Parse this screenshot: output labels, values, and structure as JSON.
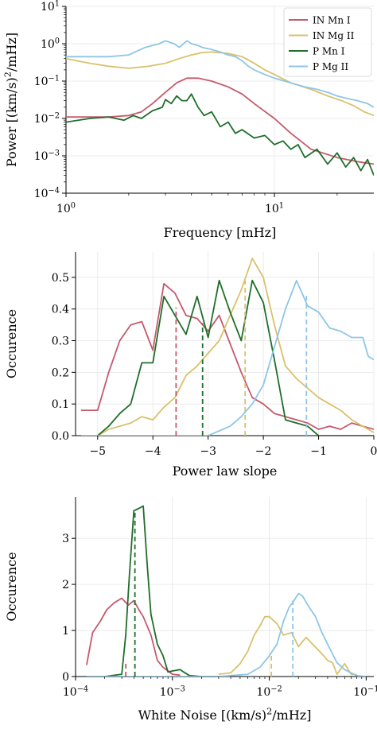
{
  "colors": {
    "IN Mn I": "#c55a6c",
    "IN Mg II": "#d9c16b",
    "P Mn I": "#1f6e2b",
    "P Mg II": "#8ec6e6"
  },
  "chart_data": [
    {
      "type": "line",
      "xlabel": "Frequency [mHz]",
      "ylabel": "Power [(km/s)^2/mHz]",
      "xscale": "log",
      "yscale": "log",
      "xlim": [
        1,
        30
      ],
      "ylim": [
        0.0001,
        10
      ],
      "grid": true,
      "legend_position": "top-right",
      "xticks": [
        {
          "v": 1,
          "label": "10^0"
        },
        {
          "v": 10,
          "label": "10^1"
        }
      ],
      "yticks": [
        {
          "v": 0.0001,
          "label": "10^-4"
        },
        {
          "v": 0.001,
          "label": "10^-3"
        },
        {
          "v": 0.01,
          "label": "10^-2"
        },
        {
          "v": 0.1,
          "label": "10^-1"
        },
        {
          "v": 1,
          "label": "10^0"
        },
        {
          "v": 10,
          "label": "10^1"
        }
      ],
      "series": [
        {
          "name": "IN Mn I",
          "x": [
            1,
            1.3,
            1.6,
            2,
            2.3,
            2.6,
            3,
            3.4,
            3.8,
            4.3,
            5,
            6,
            7,
            8,
            10,
            12,
            15,
            20,
            25,
            30
          ],
          "y": [
            0.011,
            0.011,
            0.011,
            0.012,
            0.015,
            0.025,
            0.05,
            0.09,
            0.12,
            0.12,
            0.1,
            0.07,
            0.045,
            0.025,
            0.01,
            0.004,
            0.0015,
            0.0009,
            0.0007,
            0.0006
          ]
        },
        {
          "name": "IN Mg II",
          "x": [
            1,
            1.3,
            1.6,
            2,
            2.5,
            3,
            3.5,
            4,
            4.5,
            5,
            6,
            7,
            8,
            9,
            10,
            12,
            15,
            18,
            21,
            24,
            27,
            30
          ],
          "y": [
            0.4,
            0.3,
            0.25,
            0.22,
            0.25,
            0.3,
            0.4,
            0.5,
            0.58,
            0.6,
            0.55,
            0.45,
            0.3,
            0.2,
            0.15,
            0.09,
            0.06,
            0.04,
            0.03,
            0.022,
            0.015,
            0.012
          ]
        },
        {
          "name": "P Mn I",
          "x": [
            1,
            1.3,
            1.6,
            1.9,
            2.1,
            2.3,
            2.6,
            2.9,
            3,
            3.2,
            3.4,
            3.6,
            3.8,
            4,
            4.3,
            4.6,
            5,
            5.5,
            6,
            6.5,
            7,
            8,
            9,
            10,
            11,
            12,
            13,
            14,
            16,
            18,
            20,
            22,
            24,
            26,
            28,
            30
          ],
          "y": [
            0.008,
            0.01,
            0.011,
            0.009,
            0.012,
            0.01,
            0.016,
            0.02,
            0.032,
            0.025,
            0.04,
            0.03,
            0.03,
            0.045,
            0.02,
            0.012,
            0.015,
            0.006,
            0.008,
            0.004,
            0.005,
            0.003,
            0.0035,
            0.002,
            0.0025,
            0.0015,
            0.002,
            0.0009,
            0.0015,
            0.0006,
            0.0012,
            0.0005,
            0.0009,
            0.0004,
            0.0008,
            0.0003
          ]
        },
        {
          "name": "P Mg II",
          "x": [
            1,
            1.3,
            1.6,
            2,
            2.4,
            2.8,
            3,
            3.3,
            3.5,
            3.8,
            4,
            4.3,
            4.5,
            5,
            5.5,
            6,
            6.5,
            7,
            7.5,
            8,
            9,
            10,
            12,
            14,
            16,
            18,
            20,
            22,
            25,
            28,
            30
          ],
          "y": [
            0.45,
            0.45,
            0.45,
            0.5,
            0.8,
            1.0,
            1.2,
            1.0,
            0.8,
            1.2,
            1.0,
            0.9,
            0.8,
            0.7,
            0.6,
            0.5,
            0.45,
            0.35,
            0.25,
            0.2,
            0.15,
            0.12,
            0.09,
            0.07,
            0.06,
            0.05,
            0.04,
            0.035,
            0.03,
            0.025,
            0.02
          ]
        }
      ]
    },
    {
      "type": "line",
      "xlabel": "Power law slope",
      "ylabel": "Occurence",
      "xlim": [
        -5.4,
        0
      ],
      "ylim": [
        0,
        0.58
      ],
      "grid": true,
      "xticks": [
        {
          "v": -5,
          "label": "−5"
        },
        {
          "v": -4,
          "label": "−4"
        },
        {
          "v": -3,
          "label": "−3"
        },
        {
          "v": -2,
          "label": "−2"
        },
        {
          "v": -1,
          "label": "−1"
        },
        {
          "v": 0,
          "label": "0"
        }
      ],
      "yticks": [
        {
          "v": 0,
          "label": "0.0"
        },
        {
          "v": 0.1,
          "label": "0.1"
        },
        {
          "v": 0.2,
          "label": "0.2"
        },
        {
          "v": 0.3,
          "label": "0.3"
        },
        {
          "v": 0.4,
          "label": "0.4"
        },
        {
          "v": 0.5,
          "label": "0.5"
        }
      ],
      "series": [
        {
          "name": "IN Mn I",
          "x": [
            -5.3,
            -5.0,
            -4.8,
            -4.6,
            -4.4,
            -4.2,
            -4.0,
            -3.8,
            -3.6,
            -3.4,
            -3.2,
            -3.0,
            -2.8,
            -2.6,
            -2.4,
            -2.2,
            -2.0,
            -1.8,
            -1.6,
            -1.4,
            -1.2,
            -1.0,
            -0.8,
            -0.6,
            -0.4,
            -0.2,
            0.0
          ],
          "y": [
            0.08,
            0.08,
            0.2,
            0.3,
            0.35,
            0.36,
            0.27,
            0.48,
            0.45,
            0.38,
            0.37,
            0.33,
            0.38,
            0.29,
            0.2,
            0.12,
            0.1,
            0.07,
            0.06,
            0.05,
            0.04,
            0.02,
            0.03,
            0.02,
            0.04,
            0.03,
            0.02
          ]
        },
        {
          "name": "IN Mg II",
          "x": [
            -5.0,
            -4.8,
            -4.6,
            -4.4,
            -4.2,
            -4.0,
            -3.8,
            -3.6,
            -3.4,
            -3.2,
            -3.0,
            -2.8,
            -2.6,
            -2.4,
            -2.2,
            -2.0,
            -1.8,
            -1.6,
            -1.4,
            -1.2,
            -1.0,
            -0.8,
            -0.6,
            -0.4,
            -0.2,
            0.0
          ],
          "y": [
            0.0,
            0.02,
            0.03,
            0.04,
            0.06,
            0.05,
            0.09,
            0.12,
            0.19,
            0.22,
            0.26,
            0.3,
            0.38,
            0.46,
            0.56,
            0.5,
            0.35,
            0.22,
            0.18,
            0.15,
            0.12,
            0.1,
            0.08,
            0.05,
            0.03,
            0.01
          ]
        },
        {
          "name": "P Mn I",
          "x": [
            -5.0,
            -4.8,
            -4.6,
            -4.4,
            -4.2,
            -4.0,
            -3.8,
            -3.6,
            -3.4,
            -3.2,
            -3.0,
            -2.8,
            -2.6,
            -2.4,
            -2.2,
            -2.0,
            -1.8,
            -1.6,
            -1.4,
            -1.2,
            -1.0,
            -0.8,
            -0.6,
            -0.4,
            -0.2,
            0.0
          ],
          "y": [
            0.0,
            0.03,
            0.07,
            0.1,
            0.23,
            0.23,
            0.44,
            0.38,
            0.32,
            0.44,
            0.31,
            0.49,
            0.39,
            0.3,
            0.49,
            0.42,
            0.24,
            0.05,
            0.04,
            0.03,
            0.0,
            0.0,
            0.0,
            0.0,
            0.0,
            0.0
          ]
        },
        {
          "name": "P Mg II",
          "x": [
            -5.3,
            -5.0,
            -4.5,
            -4.0,
            -3.5,
            -3.0,
            -2.6,
            -2.4,
            -2.2,
            -2.0,
            -1.8,
            -1.6,
            -1.4,
            -1.2,
            -1.0,
            -0.8,
            -0.6,
            -0.4,
            -0.2,
            -0.1,
            0.0
          ],
          "y": [
            0.0,
            0.0,
            0.0,
            0.0,
            0.0,
            0.0,
            0.03,
            0.06,
            0.1,
            0.16,
            0.28,
            0.4,
            0.49,
            0.41,
            0.39,
            0.34,
            0.33,
            0.31,
            0.31,
            0.25,
            0.24
          ]
        }
      ],
      "vlines": [
        {
          "name": "IN Mn I",
          "x": -3.58,
          "y": 0.405
        },
        {
          "name": "IN Mg II",
          "x": -2.33,
          "y": 0.49
        },
        {
          "name": "P Mn I",
          "x": -3.1,
          "y": 0.355
        },
        {
          "name": "P Mg II",
          "x": -1.22,
          "y": 0.445
        }
      ]
    },
    {
      "type": "line",
      "xlabel": "White Noise [(km/s)^2/mHz]",
      "ylabel": "Occurence",
      "xscale": "log",
      "xlim": [
        0.0001,
        0.12
      ],
      "ylim": [
        0,
        3.9
      ],
      "grid": true,
      "xticks": [
        {
          "v": 0.0001,
          "label": "10^-4"
        },
        {
          "v": 0.001,
          "label": "10^-3"
        },
        {
          "v": 0.01,
          "label": "10^-2"
        },
        {
          "v": 0.1,
          "label": "10^-1"
        }
      ],
      "yticks": [
        {
          "v": 0,
          "label": "0"
        },
        {
          "v": 1,
          "label": "1"
        },
        {
          "v": 2,
          "label": "2"
        },
        {
          "v": 3,
          "label": "3"
        }
      ],
      "series": [
        {
          "name": "IN Mn I",
          "x": [
            0.00013,
            0.00015,
            0.00018,
            0.00021,
            0.00025,
            0.0003,
            0.00035,
            0.0004,
            0.00045,
            0.0005,
            0.0006,
            0.0007,
            0.0008,
            0.001,
            0.0012
          ],
          "y": [
            0.25,
            0.95,
            1.2,
            1.45,
            1.6,
            1.7,
            1.55,
            1.65,
            1.45,
            1.3,
            0.9,
            0.35,
            0.2,
            0.05,
            0.03
          ]
        },
        {
          "name": "IN Mg II",
          "x": [
            0.003,
            0.004,
            0.005,
            0.006,
            0.007,
            0.008,
            0.009,
            0.01,
            0.012,
            0.014,
            0.017,
            0.02,
            0.024,
            0.028,
            0.033,
            0.04,
            0.045,
            0.05,
            0.06,
            0.07,
            0.08
          ],
          "y": [
            0.05,
            0.08,
            0.28,
            0.55,
            0.9,
            1.1,
            1.3,
            1.3,
            1.15,
            0.9,
            0.95,
            0.65,
            0.85,
            0.7,
            0.55,
            0.35,
            0.3,
            0.05,
            0.28,
            0.05,
            0.04
          ]
        },
        {
          "name": "P Mn I",
          "x": [
            0.00013,
            0.0002,
            0.0003,
            0.00033,
            0.00036,
            0.0004,
            0.00045,
            0.0005,
            0.00055,
            0.0006,
            0.0007,
            0.0008,
            0.0009,
            0.001,
            0.0012,
            0.0013,
            0.0015,
            0.002,
            0.003,
            0.004
          ],
          "y": [
            0.0,
            0.0,
            0.05,
            0.9,
            2.2,
            3.6,
            3.65,
            3.7,
            2.4,
            1.35,
            0.7,
            0.45,
            0.1,
            0.12,
            0.15,
            0.1,
            0.02,
            0.0,
            0.0,
            0.0
          ]
        },
        {
          "name": "P Mg II",
          "x": [
            0.00013,
            0.0005,
            0.001,
            0.003,
            0.006,
            0.008,
            0.01,
            0.012,
            0.014,
            0.016,
            0.018,
            0.02,
            0.022,
            0.025,
            0.03,
            0.035,
            0.04,
            0.05,
            0.06,
            0.08,
            0.1
          ],
          "y": [
            0.0,
            0.0,
            0.0,
            0.0,
            0.05,
            0.2,
            0.45,
            0.7,
            1.2,
            1.5,
            1.65,
            1.8,
            1.75,
            1.55,
            1.3,
            0.95,
            0.7,
            0.3,
            0.15,
            0.02,
            0.0
          ]
        }
      ],
      "vlines": [
        {
          "name": "IN Mn I",
          "x": 0.00033,
          "y": 0.3
        },
        {
          "name": "IN Mg II",
          "x": 0.0105,
          "y": 0.5
        },
        {
          "name": "P Mn I",
          "x": 0.00041,
          "y": 3.6
        },
        {
          "name": "P Mg II",
          "x": 0.0175,
          "y": 1.65
        }
      ]
    }
  ]
}
